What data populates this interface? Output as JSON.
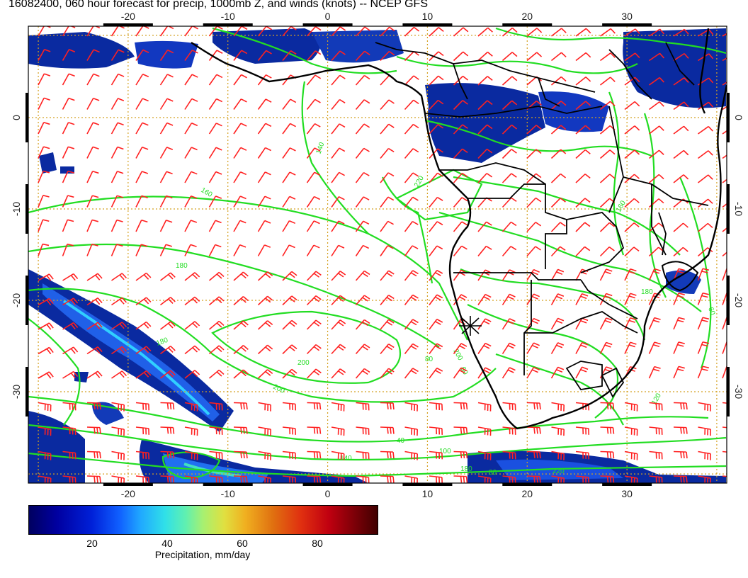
{
  "title": "16082400, 060 hour forecast for precip, 1000mb Z, and winds (knots) -- NCEP GFS",
  "map": {
    "projection": "lat-lon",
    "lon_range": [
      -30,
      40
    ],
    "lat_range": [
      -40,
      10
    ],
    "lon_tick_labels": [
      "-20",
      "-10",
      "0",
      "10",
      "20",
      "30"
    ],
    "lat_tick_labels": [
      "0",
      "-10",
      "-20",
      "-30"
    ],
    "grid": "dotted",
    "layers": [
      "precipitation shading",
      "1000mb height contours",
      "wind barbs",
      "coastlines and borders"
    ],
    "contour_labels": [
      "140",
      "160",
      "180",
      "180",
      "200",
      "200",
      "220",
      "160",
      "180",
      "200",
      "60",
      "80",
      "40",
      "100",
      "140",
      "180",
      "220",
      "120",
      "60",
      "80"
    ],
    "marker": "star"
  },
  "colors": {
    "contour": "#22dd22",
    "wind_barb": "#ff2020",
    "grid": "#d4a020",
    "coastline": "#000000",
    "precip_low": "#0a1a8a",
    "precip_high": "#400000"
  },
  "colorbar": {
    "ticks": [
      "20",
      "40",
      "60",
      "80"
    ],
    "label": "Precipitation, mm/day"
  }
}
